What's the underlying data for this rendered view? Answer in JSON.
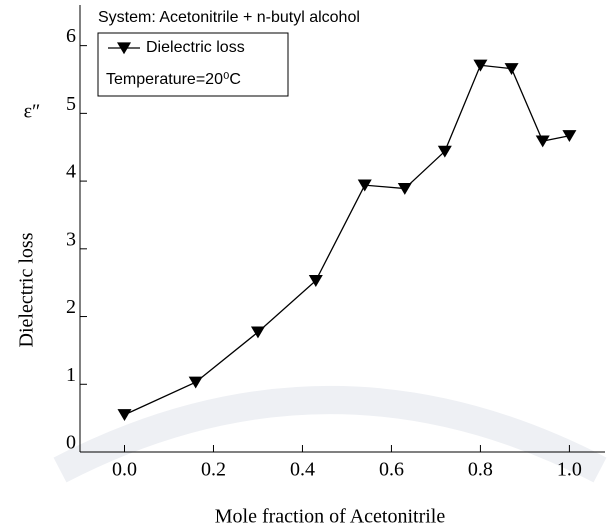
{
  "chart_data": {
    "type": "line",
    "annotation": "System: Acetonitrile + n-butyl alcohol",
    "note": "Temperature=20⁰C",
    "x_label": "Mole fraction of Acetonitrile",
    "y_label": "Dielectric loss",
    "y_symbol": "ε″",
    "x": [
      0.0,
      0.16,
      0.3,
      0.43,
      0.54,
      0.63,
      0.72,
      0.8,
      0.87,
      0.94,
      1.0
    ],
    "series": [
      {
        "name": "Dielectric loss",
        "color": "#000000",
        "values": [
          0.55,
          1.03,
          1.77,
          2.53,
          3.94,
          3.89,
          4.44,
          5.71,
          5.66,
          4.59,
          4.67
        ]
      }
    ],
    "xlim": [
      -0.1,
      1.08
    ],
    "ylim": [
      0,
      6.6
    ],
    "xticks": [
      {
        "value": 0,
        "label": "0.0"
      },
      0.2,
      0.4,
      0.6,
      0.8,
      {
        "value": 1,
        "label": "1.0"
      }
    ],
    "yticks": [
      0,
      1,
      2,
      3,
      4,
      5,
      6
    ],
    "legend": "upper left"
  }
}
